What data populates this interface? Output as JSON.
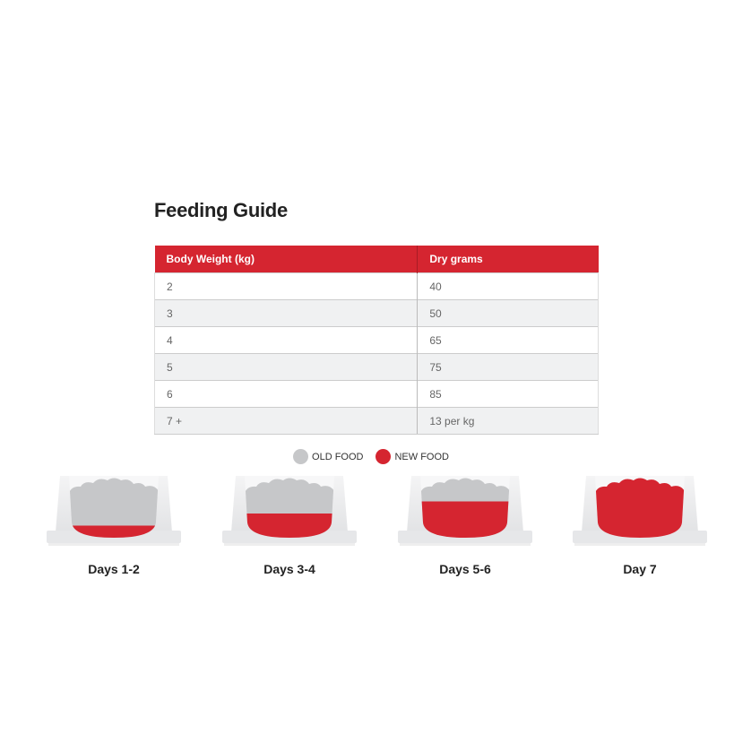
{
  "title": "Feeding Guide",
  "table": {
    "headers": [
      "Body Weight (kg)",
      "Dry grams"
    ],
    "rows": [
      [
        "2",
        "40"
      ],
      [
        "3",
        "50"
      ],
      [
        "4",
        "65"
      ],
      [
        "5",
        "75"
      ],
      [
        "6",
        "85"
      ],
      [
        "7 +",
        "13 per kg"
      ]
    ]
  },
  "legend": [
    {
      "label": "OLD FOOD",
      "color": "#c6c7c9"
    },
    {
      "label": "NEW FOOD",
      "color": "#d52530"
    }
  ],
  "bowls": [
    {
      "label": "Days 1-2",
      "new_food_fraction": 0.25
    },
    {
      "label": "Days 3-4",
      "new_food_fraction": 0.5
    },
    {
      "label": "Days 5-6",
      "new_food_fraction": 0.75
    },
    {
      "label": "Day 7",
      "new_food_fraction": 1.0
    }
  ]
}
